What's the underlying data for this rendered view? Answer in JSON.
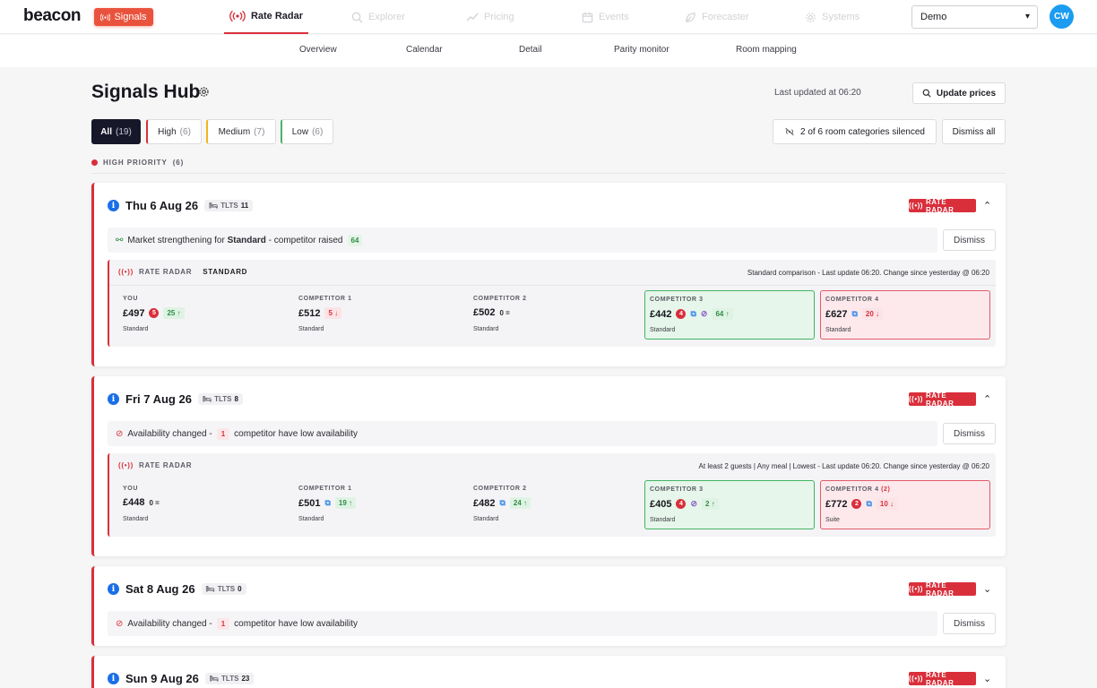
{
  "app": {
    "logo": "beacon",
    "signals_label": "Signals",
    "avatar_initials": "CW",
    "workspace": "Demo"
  },
  "nav": {
    "items": [
      {
        "label": "Rate Radar",
        "icon": "radar-icon",
        "active": true
      },
      {
        "label": "Explorer",
        "icon": "search-icon",
        "active": false
      },
      {
        "label": "Pricing",
        "icon": "trend-icon",
        "active": false
      },
      {
        "label": "Events",
        "icon": "calendar-icon",
        "active": false
      },
      {
        "label": "Forecaster",
        "icon": "leaf-icon",
        "active": false
      },
      {
        "label": "Systems",
        "icon": "gear-icon",
        "active": false
      }
    ]
  },
  "subnav": [
    "Overview",
    "Calendar",
    "Detail",
    "Parity monitor",
    "Room mapping"
  ],
  "page": {
    "title": "Signals Hub",
    "last_updated": "Last updated at 06:20",
    "update_btn": "Update prices"
  },
  "filters": [
    {
      "label": "All",
      "count": "(19)",
      "color": "#17172a"
    },
    {
      "label": "High",
      "count": "(6)",
      "color": "#d92f3b"
    },
    {
      "label": "Medium",
      "count": "(7)",
      "color": "#f0b51c"
    },
    {
      "label": "Low",
      "count": "(6)",
      "color": "#4cb36a"
    }
  ],
  "silenced": "2 of 6 room categories silenced",
  "dismiss_all": "Dismiss all",
  "section": {
    "label": "HIGH PRIORITY",
    "count": "(6)"
  },
  "badge_label": "RATE RADAR",
  "dismiss_label": "Dismiss",
  "cards": [
    {
      "date": "Thu 6 Aug 26",
      "tlts_label": "TLTS",
      "tlts": "11",
      "signal": {
        "pre": "Market strengthening for ",
        "bold": "Standard",
        "post": " - competitor raised",
        "value": "64"
      },
      "panel": {
        "title": "RATE RADAR",
        "room": "STANDARD",
        "meta": "Standard comparison - Last update 06:20. Change since yesterday @ 06:20",
        "comps": [
          {
            "label": "YOU",
            "sub": "",
            "price": "£497",
            "rank": "5",
            "change": "25",
            "dir": "up",
            "room": "Standard",
            "style": "plain"
          },
          {
            "label": "COMPETITOR 1",
            "sub": "",
            "price": "£512",
            "rank": "",
            "change": "5",
            "dir": "down",
            "room": "Standard",
            "style": "plain"
          },
          {
            "label": "COMPETITOR 2",
            "sub": "",
            "price": "£502",
            "rank": "",
            "change": "0",
            "dir": "eq",
            "room": "Standard",
            "style": "plain"
          },
          {
            "label": "COMPETITOR 3",
            "sub": "",
            "price": "£442",
            "rank": "4",
            "change": "64",
            "dir": "up",
            "room": "Standard",
            "style": "green"
          },
          {
            "label": "COMPETITOR 4",
            "sub": "",
            "price": "£627",
            "rank": "",
            "change": "20",
            "dir": "down",
            "room": "Standard",
            "style": "red"
          }
        ]
      }
    },
    {
      "date": "Fri 7 Aug 26",
      "tlts_label": "TLTS",
      "tlts": "8",
      "signal": {
        "pre": "Availability changed - ",
        "value": "1",
        "post": " competitor have low availability"
      },
      "panel": {
        "title": "RATE RADAR",
        "room": "",
        "meta": "At least 2 guests | Any meal | Lowest - Last update 06:20. Change since yesterday @ 06:20",
        "comps": [
          {
            "label": "YOU",
            "sub": "",
            "price": "£448",
            "rank": "",
            "change": "0",
            "dir": "eq",
            "room": "Standard",
            "style": "plain"
          },
          {
            "label": "COMPETITOR 1",
            "sub": "",
            "price": "£501",
            "rank": "",
            "change": "19",
            "dir": "up",
            "room": "Standard",
            "style": "plain"
          },
          {
            "label": "COMPETITOR 2",
            "sub": "",
            "price": "£482",
            "rank": "",
            "change": "24",
            "dir": "up",
            "room": "Standard",
            "style": "plain"
          },
          {
            "label": "COMPETITOR 3",
            "sub": "",
            "price": "£405",
            "rank": "4",
            "change": "2",
            "dir": "up",
            "room": "Standard",
            "style": "green"
          },
          {
            "label": "COMPETITOR 4",
            "sub": "(2)",
            "price": "£772",
            "rank": "2",
            "change": "10",
            "dir": "down",
            "room": "Suite",
            "style": "red"
          }
        ]
      }
    },
    {
      "date": "Sat 8 Aug 26",
      "tlts_label": "TLTS",
      "tlts": "0",
      "signal": {
        "pre": "Availability changed - ",
        "value": "1",
        "post": " competitor have low availability"
      }
    },
    {
      "date": "Sun 9 Aug 26",
      "tlts_label": "TLTS",
      "tlts": "23"
    }
  ]
}
